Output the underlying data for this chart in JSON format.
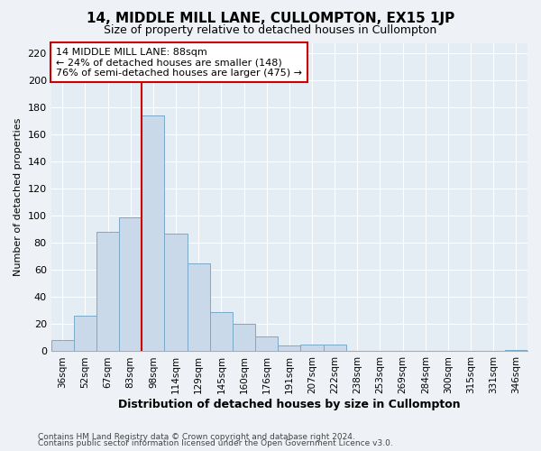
{
  "title": "14, MIDDLE MILL LANE, CULLOMPTON, EX15 1JP",
  "subtitle": "Size of property relative to detached houses in Cullompton",
  "xlabel": "Distribution of detached houses by size in Cullompton",
  "ylabel": "Number of detached properties",
  "bar_heights": [
    8,
    26,
    88,
    99,
    174,
    87,
    65,
    29,
    20,
    11,
    4,
    5,
    5,
    0,
    0,
    0,
    0,
    0,
    0,
    0,
    1
  ],
  "categories": [
    "36sqm",
    "52sqm",
    "67sqm",
    "83sqm",
    "98sqm",
    "114sqm",
    "129sqm",
    "145sqm",
    "160sqm",
    "176sqm",
    "191sqm",
    "207sqm",
    "222sqm",
    "238sqm",
    "253sqm",
    "269sqm",
    "284sqm",
    "300sqm",
    "315sqm",
    "331sqm",
    "346sqm"
  ],
  "bar_color": "#c9d9ea",
  "bar_edge_color": "#7aaac8",
  "vline_color": "#cc0000",
  "vline_pos": 3.5,
  "annotation_text": "14 MIDDLE MILL LANE: 88sqm\n← 24% of detached houses are smaller (148)\n76% of semi-detached houses are larger (475) →",
  "annotation_box_facecolor": "#ffffff",
  "annotation_box_edgecolor": "#cc0000",
  "ylim": [
    0,
    228
  ],
  "yticks": [
    0,
    20,
    40,
    60,
    80,
    100,
    120,
    140,
    160,
    180,
    200,
    220
  ],
  "fig_bg_color": "#eef2f6",
  "ax_bg_color": "#e4ecf4",
  "grid_color": "#ffffff",
  "title_fontsize": 11,
  "subtitle_fontsize": 9,
  "ylabel_fontsize": 8,
  "xlabel_fontsize": 9,
  "ytick_fontsize": 8,
  "xtick_fontsize": 7.5,
  "annotation_fontsize": 8,
  "footer1": "Contains HM Land Registry data © Crown copyright and database right 2024.",
  "footer2": "Contains public sector information licensed under the Open Government Licence v3.0.",
  "footer_fontsize": 6.5
}
